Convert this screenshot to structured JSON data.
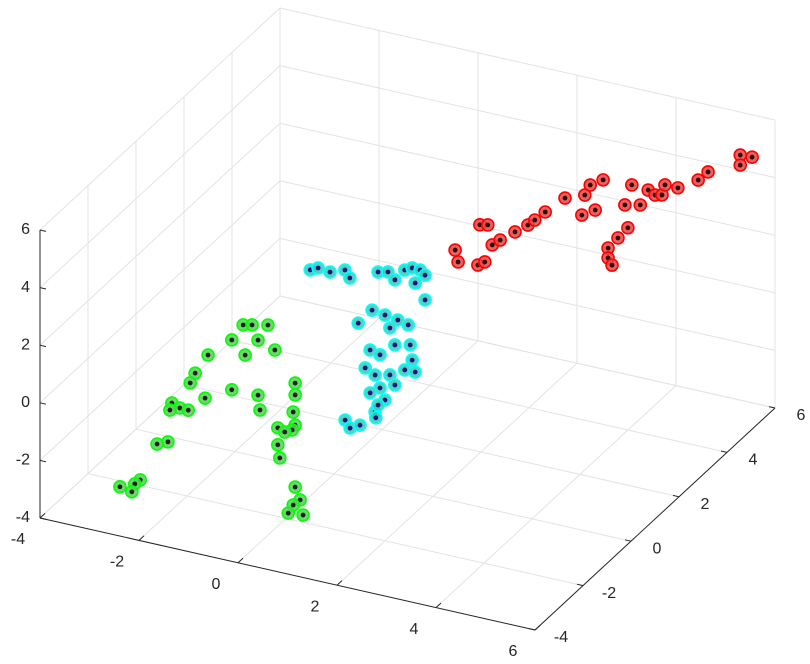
{
  "chart_data": {
    "type": "scatter3d",
    "xlim": [
      -4,
      6
    ],
    "ylim": [
      -4,
      6
    ],
    "zlim": [
      -4,
      6
    ],
    "xticks": [
      -4,
      -2,
      0,
      2,
      4,
      6
    ],
    "yticks": [
      -4,
      -2,
      0,
      2,
      4,
      6
    ],
    "zticks": [
      -4,
      -2,
      0,
      2,
      4,
      6
    ],
    "grid": true,
    "series": [
      {
        "color": "#ff0000",
        "fill": "#e04848",
        "dot_color": "#3a0000",
        "x": [
          -0.22,
          -0.16,
          0.24,
          0.38,
          0.28,
          0.44,
          0.53,
          0.69,
          0.99,
          1.25,
          1.39,
          1.6,
          2.0,
          2.4,
          2.51,
          2.77,
          2.34,
          2.61,
          2.87,
          2.87,
          2.95,
          3.07,
          3.27,
          3.21,
          3.35,
          3.52,
          3.68,
          3.82,
          3.96,
          4.02,
          4.28,
          4.69,
          4.89,
          5.54,
          5.78,
          5.54
        ],
        "y": [
          5.5,
          5.5,
          5.5,
          5.5,
          5.5,
          5.5,
          5.5,
          5.5,
          5.5,
          5.5,
          5.5,
          5.5,
          5.5,
          5.5,
          5.5,
          5.5,
          5.5,
          5.5,
          5.5,
          5.5,
          5.5,
          5.5,
          5.5,
          5.5,
          5.5,
          5.5,
          5.5,
          5.5,
          5.5,
          5.5,
          5.5,
          5.5,
          5.5,
          5.5,
          5.5,
          5.5
        ],
        "z": [
          -0.55,
          -0.94,
          -0.89,
          -0.73,
          0.52,
          0.58,
          -0.08,
          0.15,
          0.55,
          0.89,
          1.12,
          1.48,
          2.12,
          2.38,
          2.77,
          3.05,
          1.66,
          1.94,
          0.72,
          0.38,
          0.16,
          1.15,
          1.58,
          2.35,
          3.1,
          2.47,
          3.05,
          2.93,
          2.99,
          3.36,
          3.36,
          3.79,
          4.15,
          4.99,
          5.01,
          4.64
        ]
      },
      {
        "color": "#00ffff",
        "fill": "#3cc8b4",
        "dot_color": "#0a1a80",
        "x": [
          -1.45,
          -1.29,
          -1.05,
          -0.75,
          -0.65,
          -0.08,
          0.12,
          0.46,
          0.61,
          0.77,
          0.87,
          0.26,
          0.67,
          0.87,
          -0.2,
          0.06,
          0.32,
          0.53,
          -0.48,
          0.16,
          -0.24,
          -0.04,
          0.26,
          0.57,
          0.61,
          -0.34,
          -0.14,
          0.16,
          0.46,
          0.67,
          -0.04,
          0.26,
          -0.24,
          0.06,
          -0.14,
          -0.26,
          -0.16,
          0.04,
          -0.08,
          0.36
        ],
        "y": [
          2,
          2,
          2,
          2,
          2,
          2,
          2,
          2,
          2,
          2,
          2,
          2,
          2,
          2,
          2,
          2,
          2,
          2,
          2,
          2,
          2,
          2,
          2,
          2,
          2,
          2,
          2,
          2,
          2,
          2,
          2,
          2,
          2,
          2,
          2,
          1,
          1,
          1,
          2,
          1
        ],
        "z": [
          0.98,
          1.11,
          1.06,
          1.25,
          1.01,
          1.44,
          1.52,
          1.72,
          1.85,
          1.84,
          1.7,
          1.3,
          1.35,
          0.84,
          0.07,
          0.0,
          -0.07,
          -0.16,
          -0.49,
          -0.41,
          -1.33,
          -1.42,
          -0.96,
          -0.84,
          -1.35,
          -1.99,
          -2.16,
          -2.04,
          -1.75,
          -1.74,
          -2.57,
          -2.35,
          -2.82,
          -2.95,
          -3.44,
          -3.0,
          -3.24,
          -3.06,
          -3.18,
          -2.68
        ]
      },
      {
        "color": "#00ff00",
        "fill": "#5ccc5c",
        "dot_color": "#102a10",
        "x": [
          -1.35,
          -1.17,
          -0.85,
          -1.58,
          -1.05,
          -1.31,
          -0.71,
          -2.06,
          -2.32,
          -2.42,
          -1.58,
          -1.05,
          -2.12,
          -0.3,
          -0.3,
          -2.79,
          -2.63,
          -2.46,
          -2.83,
          -1.01,
          -0.34,
          -0.3,
          -0.65,
          -0.36,
          -0.51,
          -2.87,
          -3.09,
          -0.65,
          -0.61,
          -2.46,
          -2.57,
          -2.87,
          -2.63,
          0.67,
          0.77,
          0.63,
          0.53,
          0.83
        ],
        "y": [
          -1,
          -1,
          -1,
          -1,
          -1,
          -1,
          -1,
          -1,
          -1,
          -1,
          -1,
          -1,
          -1,
          -1,
          -1,
          -1,
          -1,
          -1,
          -1,
          -1,
          -1,
          -1,
          -1,
          -1,
          -1,
          -1,
          -1,
          -1,
          -1,
          -3,
          -3,
          -3,
          -3,
          -3,
          -3,
          -3,
          -3,
          -3
        ],
        "z": [
          1.42,
          1.49,
          1.61,
          0.81,
          1.01,
          0.39,
          0.8,
          0.1,
          -0.63,
          -1.01,
          -0.92,
          -0.9,
          -1.42,
          -0.19,
          -0.6,
          -1.85,
          -1.96,
          -1.97,
          -2.11,
          -1.4,
          -1.21,
          -1.65,
          -1.88,
          -1.84,
          -1.97,
          -3.23,
          -3.39,
          -2.47,
          -2.91,
          -2.85,
          -3.03,
          -3.25,
          -3.33,
          -1.88,
          -2.29,
          -2.52,
          -2.84,
          -2.79
        ]
      }
    ]
  }
}
